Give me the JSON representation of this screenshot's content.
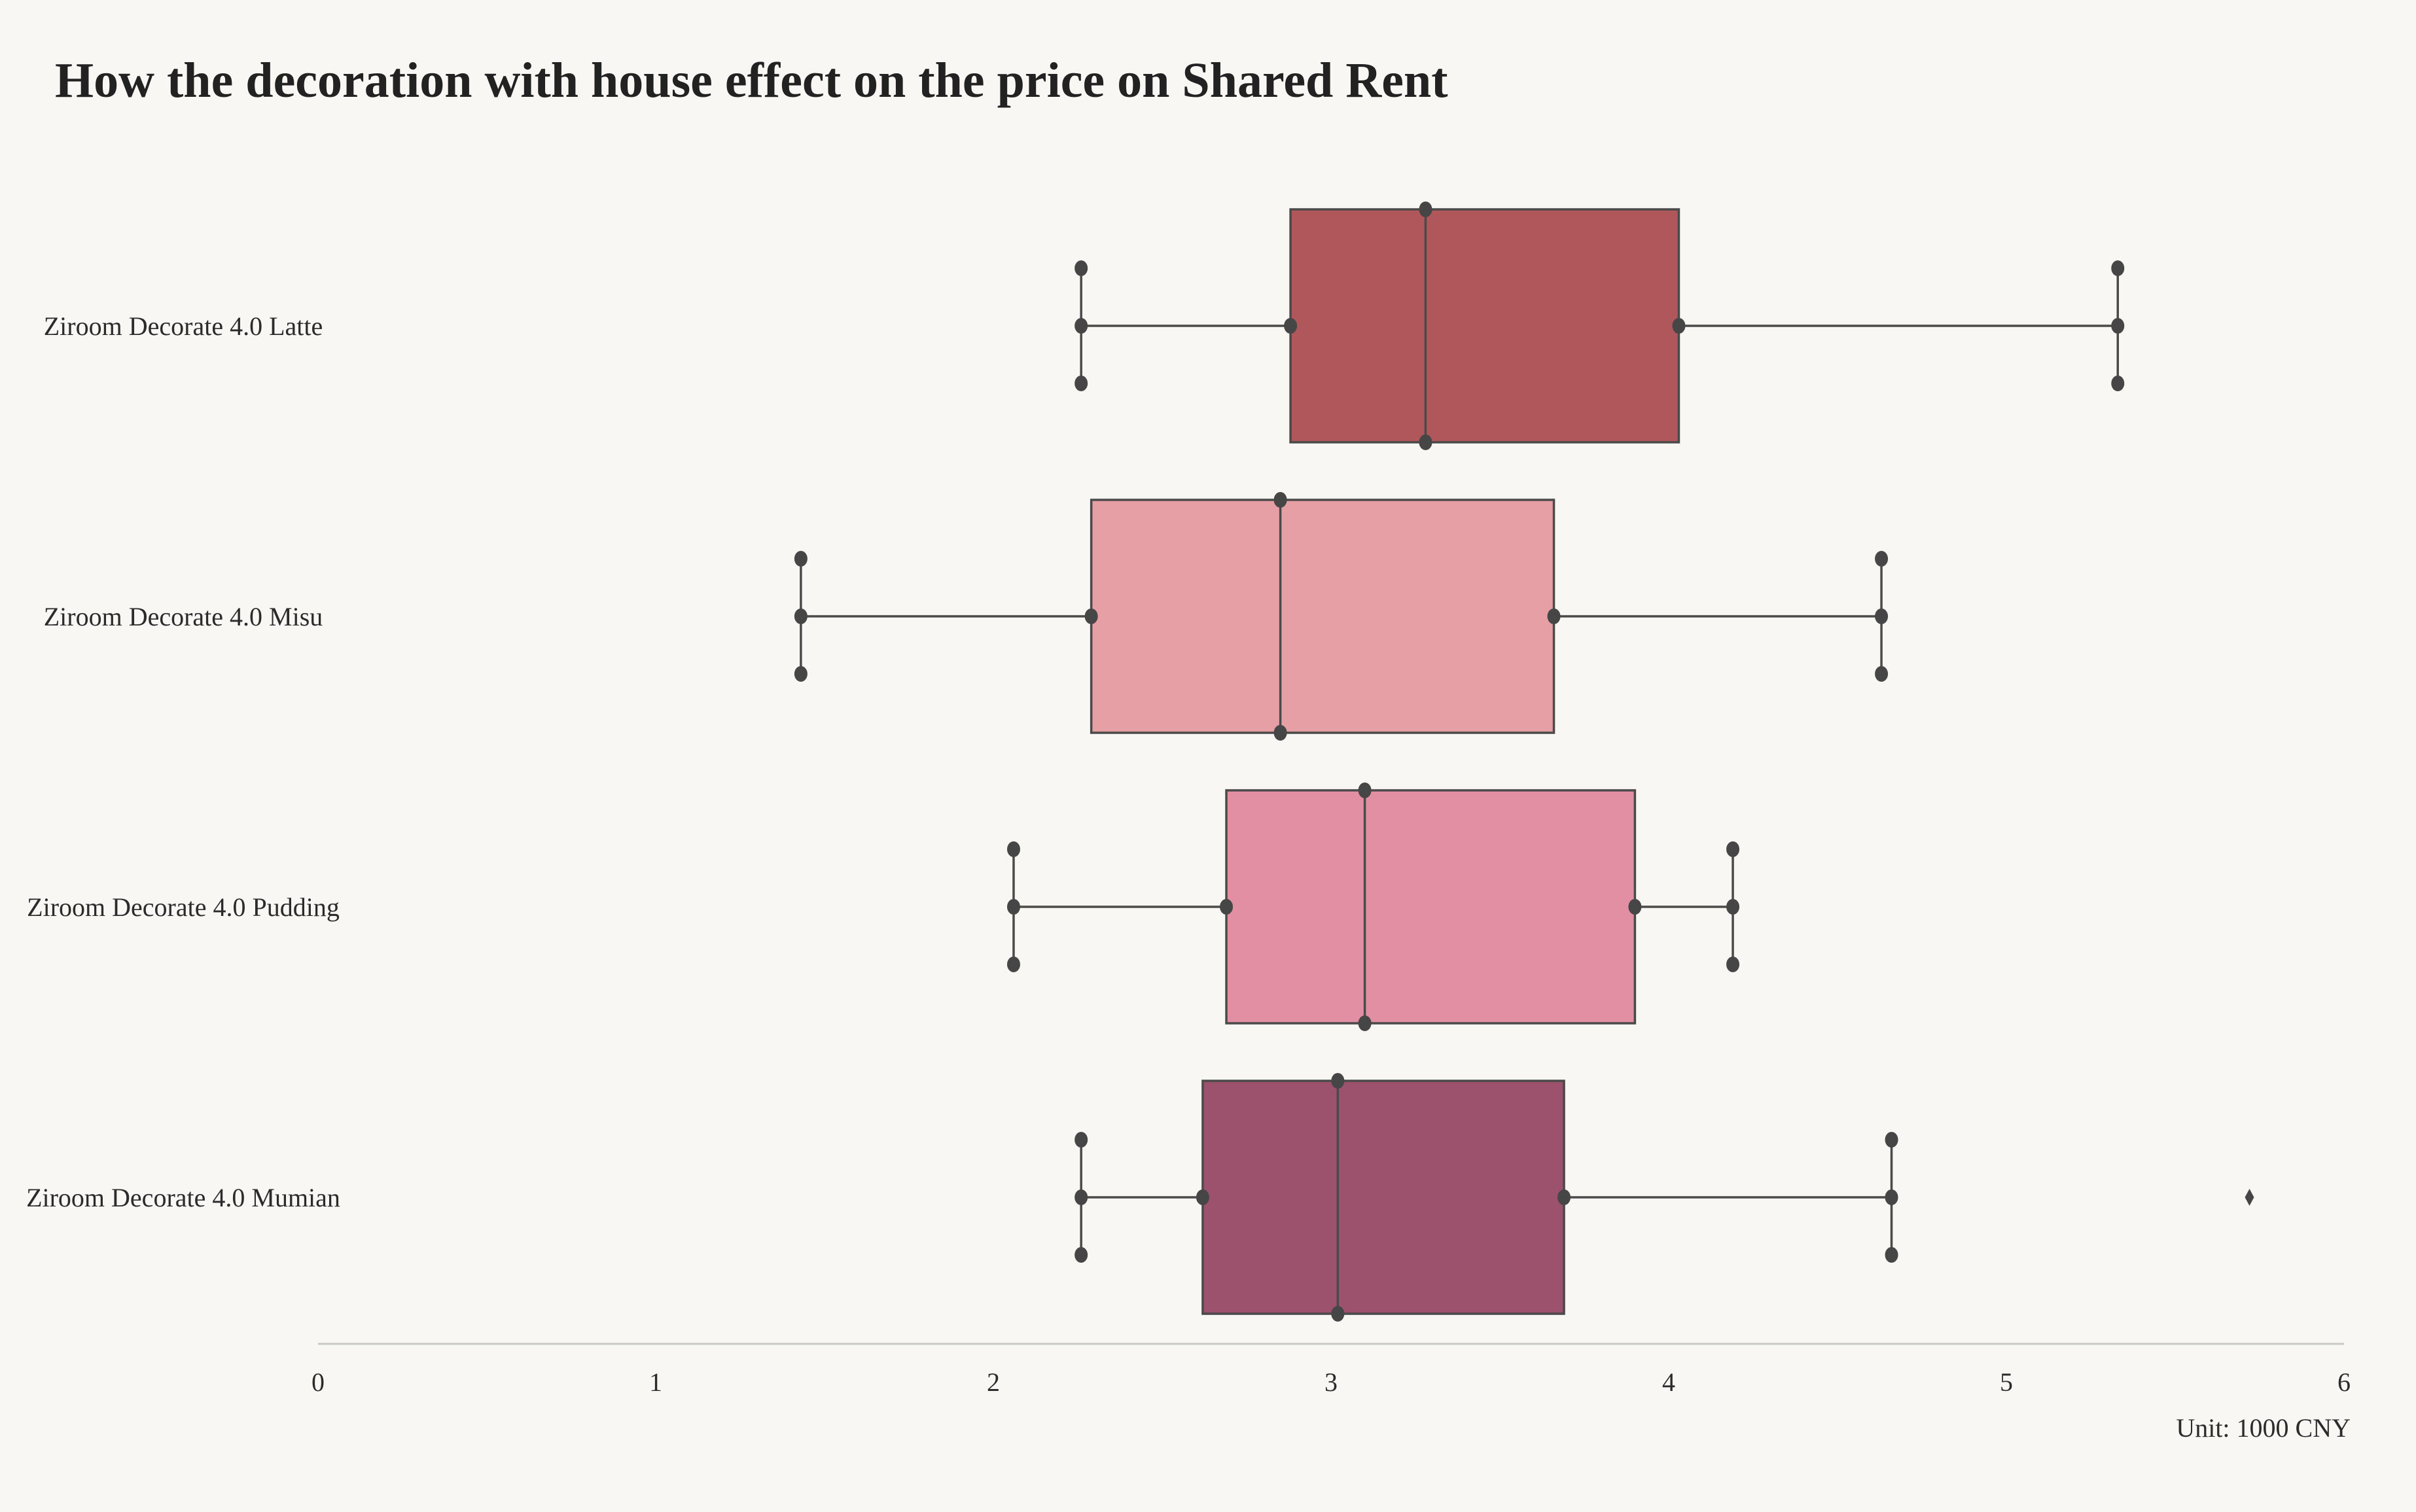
{
  "chart_data": {
    "type": "box",
    "orientation": "horizontal",
    "title": "How the decoration with house effect on the price on Shared Rent",
    "unit_label": "Unit: 1000 CNY",
    "xlim": [
      0,
      6
    ],
    "x_ticks": [
      0,
      1,
      2,
      3,
      4,
      5,
      6
    ],
    "grid": false,
    "series": [
      {
        "name": "Ziroom Decorate 4.0 Latte",
        "whisker_low": 2.26,
        "q1": 2.88,
        "median": 3.28,
        "q3": 4.03,
        "whisker_high": 5.33,
        "outliers": [],
        "color": "#b0575c"
      },
      {
        "name": "Ziroom Decorate 4.0 Misu",
        "whisker_low": 1.43,
        "q1": 2.29,
        "median": 2.85,
        "q3": 3.66,
        "whisker_high": 4.63,
        "outliers": [],
        "color": "#e69fa4"
      },
      {
        "name": "Ziroom Decorate 4.0 Pudding",
        "whisker_low": 2.06,
        "q1": 2.69,
        "median": 3.1,
        "q3": 3.9,
        "whisker_high": 4.19,
        "outliers": [],
        "color": "#e28fa4"
      },
      {
        "name": "Ziroom Decorate 4.0 Mumian",
        "whisker_low": 2.26,
        "q1": 2.62,
        "median": 3.02,
        "q3": 3.69,
        "whisker_high": 4.66,
        "outliers": [
          5.72
        ],
        "color": "#9c516c"
      }
    ]
  }
}
